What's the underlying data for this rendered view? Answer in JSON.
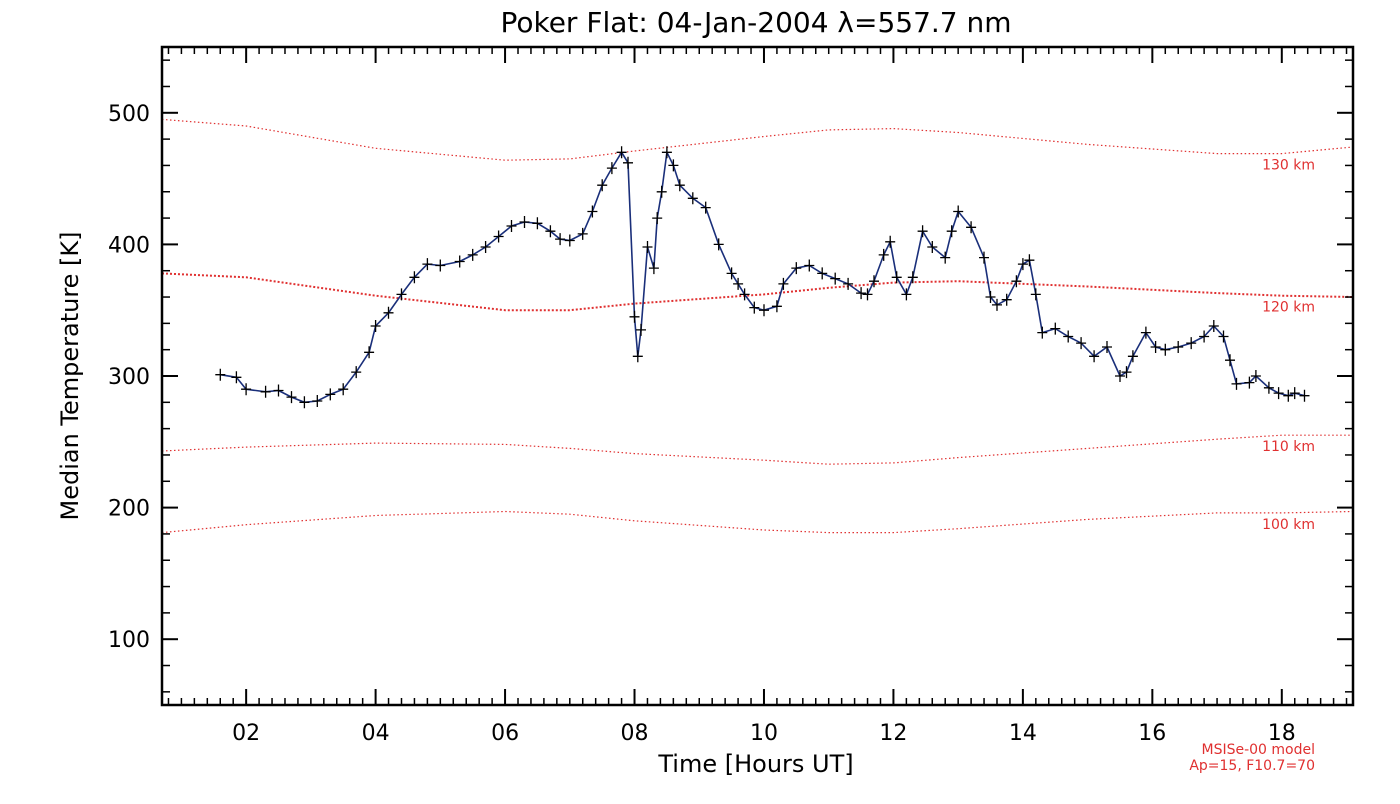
{
  "chart_data": {
    "type": "line",
    "title": "Poker Flat: 04-Jan-2004 λ=557.7 nm",
    "xlabel": "Time [Hours UT]",
    "ylabel": "Median Temperature [K]",
    "xlim": [
      0.7,
      19.1
    ],
    "ylim": [
      50,
      550
    ],
    "x_ticks": [
      2,
      4,
      6,
      8,
      10,
      12,
      14,
      16,
      18
    ],
    "x_tick_labels": [
      "02",
      "04",
      "06",
      "08",
      "10",
      "12",
      "14",
      "16",
      "18"
    ],
    "y_ticks": [
      100,
      200,
      300,
      400,
      500
    ],
    "y_tick_labels": [
      "100",
      "200",
      "300",
      "400",
      "500"
    ],
    "grid": false,
    "series": [
      {
        "name": "Median Temperature",
        "color": "#1a2f7a",
        "marker": "+",
        "x": [
          1.6,
          1.85,
          2.0,
          2.3,
          2.5,
          2.7,
          2.9,
          3.1,
          3.3,
          3.5,
          3.7,
          3.9,
          4.0,
          4.2,
          4.4,
          4.6,
          4.8,
          5.0,
          5.3,
          5.5,
          5.7,
          5.9,
          6.1,
          6.3,
          6.5,
          6.7,
          6.85,
          7.0,
          7.2,
          7.35,
          7.5,
          7.65,
          7.8,
          7.9,
          8.0,
          8.05,
          8.1,
          8.2,
          8.3,
          8.35,
          8.42,
          8.5,
          8.6,
          8.7,
          8.9,
          9.1,
          9.3,
          9.5,
          9.6,
          9.7,
          9.85,
          10.0,
          10.2,
          10.3,
          10.5,
          10.7,
          10.9,
          11.1,
          11.3,
          11.5,
          11.6,
          11.7,
          11.85,
          11.95,
          12.05,
          12.2,
          12.3,
          12.45,
          12.6,
          12.8,
          12.9,
          13.0,
          13.2,
          13.4,
          13.5,
          13.6,
          13.75,
          13.9,
          14.0,
          14.1,
          14.2,
          14.3,
          14.5,
          14.7,
          14.9,
          15.1,
          15.3,
          15.5,
          15.6,
          15.7,
          15.9,
          16.05,
          16.2,
          16.4,
          16.6,
          16.8,
          16.95,
          17.1,
          17.2,
          17.3,
          17.5,
          17.6,
          17.8,
          17.95,
          18.1,
          18.2,
          18.35
        ],
        "y": [
          301,
          299,
          290,
          288,
          289,
          284,
          280,
          281,
          286,
          290,
          303,
          318,
          338,
          348,
          362,
          375,
          385,
          384,
          387,
          392,
          398,
          406,
          414,
          417,
          416,
          410,
          404,
          403,
          408,
          425,
          445,
          458,
          470,
          462,
          345,
          315,
          335,
          398,
          382,
          420,
          440,
          470,
          460,
          445,
          435,
          428,
          400,
          378,
          370,
          362,
          352,
          350,
          353,
          370,
          382,
          384,
          378,
          374,
          370,
          363,
          362,
          372,
          392,
          402,
          375,
          362,
          375,
          410,
          398,
          390,
          410,
          425,
          413,
          390,
          360,
          354,
          358,
          372,
          385,
          388,
          362,
          333,
          336,
          330,
          325,
          315,
          322,
          300,
          303,
          315,
          333,
          322,
          320,
          322,
          325,
          330,
          338,
          330,
          312,
          294,
          295,
          300,
          291,
          287,
          285,
          287,
          285
        ]
      }
    ],
    "model_curves": [
      {
        "label": "130 km",
        "color": "#e03030",
        "x": [
          0.7,
          2,
          4,
          6,
          7,
          8,
          10,
          11,
          12,
          13,
          15,
          17,
          18,
          19.1
        ],
        "y": [
          495,
          490,
          473,
          464,
          465,
          471,
          482,
          487,
          488,
          485,
          476,
          469,
          469,
          474
        ]
      },
      {
        "label": "120 km",
        "color": "#e03030",
        "x": [
          0.7,
          2,
          4,
          6,
          7,
          8,
          10,
          11,
          12,
          13,
          15,
          17,
          18,
          19.1
        ],
        "y": [
          378,
          375,
          361,
          350,
          350,
          355,
          362,
          367,
          371,
          372,
          368,
          363,
          361,
          360
        ]
      },
      {
        "label": "110 km",
        "color": "#e03030",
        "x": [
          0.7,
          2,
          4,
          6,
          7,
          8,
          10,
          11,
          12,
          13,
          15,
          17,
          18,
          19.1
        ],
        "y": [
          243,
          246,
          249,
          248,
          245,
          241,
          236,
          233,
          234,
          238,
          245,
          252,
          255,
          255
        ]
      },
      {
        "label": "100 km",
        "color": "#e03030",
        "x": [
          0.7,
          2,
          4,
          6,
          7,
          8,
          10,
          11,
          12,
          13,
          15,
          17,
          18,
          19.1
        ],
        "y": [
          181,
          187,
          194,
          197,
          195,
          190,
          183,
          181,
          181,
          184,
          191,
          196,
          196,
          197
        ]
      }
    ],
    "annotations": [
      {
        "text": "MSISe-00 model",
        "color": "#e03030"
      },
      {
        "text": "Ap=15, F10.7=70",
        "color": "#e03030"
      }
    ]
  }
}
